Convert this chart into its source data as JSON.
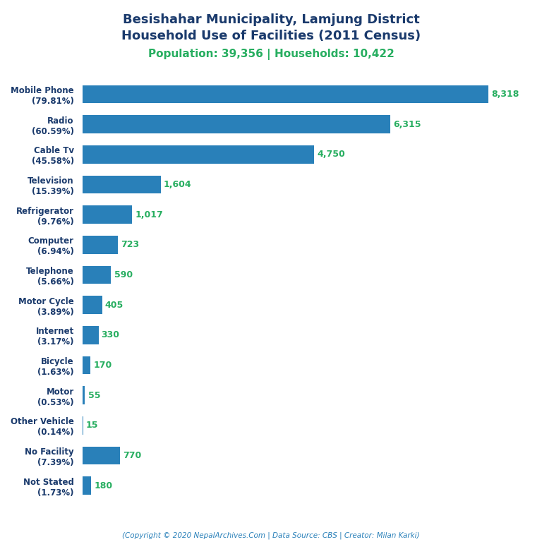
{
  "title_line1": "Besishahar Municipality, Lamjung District",
  "title_line2": "Household Use of Facilities (2011 Census)",
  "subtitle": "Population: 39,356 | Households: 10,422",
  "categories": [
    "Mobile Phone\n(79.81%)",
    "Radio\n(60.59%)",
    "Cable Tv\n(45.58%)",
    "Television\n(15.39%)",
    "Refrigerator\n(9.76%)",
    "Computer\n(6.94%)",
    "Telephone\n(5.66%)",
    "Motor Cycle\n(3.89%)",
    "Internet\n(3.17%)",
    "Bicycle\n(1.63%)",
    "Motor\n(0.53%)",
    "Other Vehicle\n(0.14%)",
    "No Facility\n(7.39%)",
    "Not Stated\n(1.73%)"
  ],
  "values": [
    8318,
    6315,
    4750,
    1604,
    1017,
    723,
    590,
    405,
    330,
    170,
    55,
    15,
    770,
    180
  ],
  "bar_color": "#2980b9",
  "label_color": "#27ae60",
  "title_color": "#1a3a6c",
  "subtitle_color": "#27ae60",
  "ylabel_color": "#1a3a6c",
  "footer_color": "#2980b9",
  "footer_text": "(Copyright © 2020 NepalArchives.Com | Data Source: CBS | Creator: Milan Karki)",
  "background_color": "#ffffff",
  "xlim": [
    0,
    9200
  ]
}
